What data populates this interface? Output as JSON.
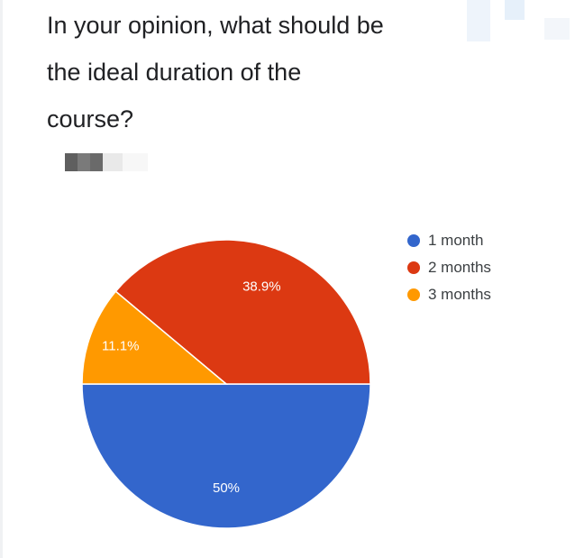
{
  "question": {
    "lines": [
      "In your opinion, what should be",
      "the ideal duration of the",
      "course?"
    ]
  },
  "chart_data": {
    "type": "pie",
    "title": "In your opinion, what should be the ideal duration of the course?",
    "slices": [
      {
        "label": "1 month",
        "value": 50,
        "display": "50%",
        "color": "#3366cc"
      },
      {
        "label": "2 months",
        "value": 38.9,
        "display": "38.9%",
        "color": "#dc3912"
      },
      {
        "label": "3 months",
        "value": 11.1,
        "display": "11.1%",
        "color": "#ff9900"
      }
    ],
    "legend_position": "right"
  }
}
